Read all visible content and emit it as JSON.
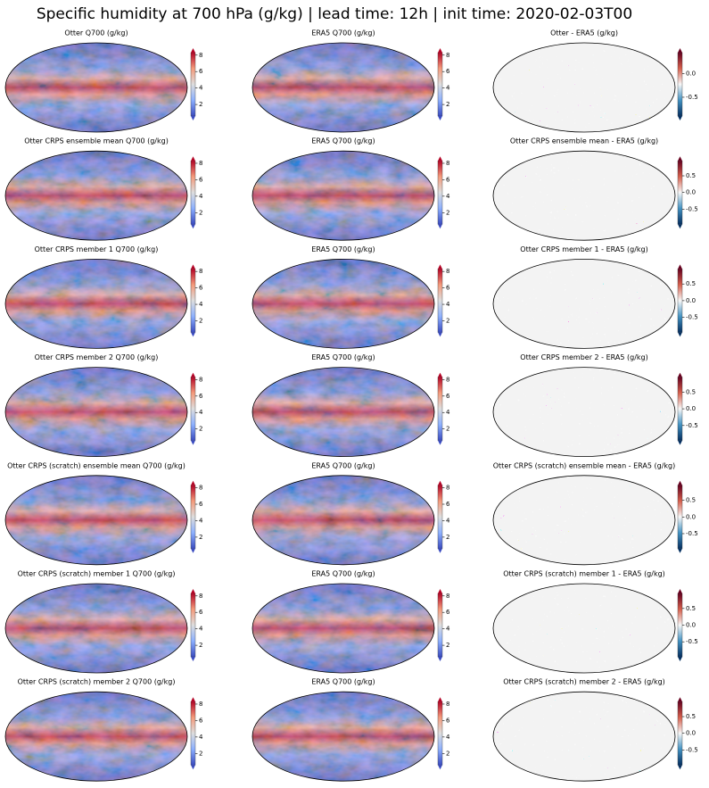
{
  "title": "Specific humidity at 700 hPa (g/kg) | lead time: 12h | init time: 2020-02-03T00",
  "colormaps": {
    "coolwarm": [
      "#3b4cc0",
      "#8db0fe",
      "#dddddd",
      "#f49a7b",
      "#b40426"
    ],
    "RdBu_r": [
      "#053061",
      "#4393c3",
      "#f7f7f7",
      "#d6604d",
      "#67001f"
    ]
  },
  "panels": [
    [
      {
        "title": "Otter Q700 (g/kg)",
        "cmap": "coolwarm",
        "clim": [
          0.6,
          8.3
        ],
        "cticks": [
          2,
          4,
          6,
          8
        ]
      },
      {
        "title": "ERA5 Q700 (g/kg)",
        "cmap": "coolwarm",
        "clim": [
          0.6,
          8.3
        ],
        "cticks": [
          2,
          4,
          6,
          8
        ]
      },
      {
        "title": "Otter - ERA5 (g/kg)",
        "cmap": "RdBu_r",
        "clim": [
          -0.9,
          0.45
        ],
        "cticks": [
          -0.5,
          {
            "value": 0,
            "label": "0.0"
          }
        ]
      }
    ],
    [
      {
        "title": "Otter CRPS ensemble mean Q700 (g/kg)",
        "cmap": "coolwarm",
        "clim": [
          0.6,
          8.3
        ],
        "cticks": [
          2,
          4,
          6,
          8
        ]
      },
      {
        "title": "ERA5 Q700 (g/kg)",
        "cmap": "coolwarm",
        "clim": [
          0.6,
          8.3
        ],
        "cticks": [
          2,
          4,
          6,
          8
        ]
      },
      {
        "title": "Otter CRPS ensemble mean - ERA5 (g/kg)",
        "cmap": "RdBu_r",
        "clim": [
          -0.95,
          0.95
        ],
        "cticks": [
          -0.5,
          {
            "value": 0,
            "label": "0.0"
          },
          0.5
        ]
      }
    ],
    [
      {
        "title": "Otter CRPS member 1 Q700 (g/kg)",
        "cmap": "coolwarm",
        "clim": [
          0.6,
          8.3
        ],
        "cticks": [
          2,
          4,
          6,
          8
        ]
      },
      {
        "title": "ERA5 Q700 (g/kg)",
        "cmap": "coolwarm",
        "clim": [
          0.6,
          8.3
        ],
        "cticks": [
          2,
          4,
          6,
          8
        ]
      },
      {
        "title": "Otter CRPS member 1 - ERA5 (g/kg)",
        "cmap": "RdBu_r",
        "clim": [
          -0.95,
          0.95
        ],
        "cticks": [
          -0.5,
          {
            "value": 0,
            "label": "0.0"
          },
          0.5
        ]
      }
    ],
    [
      {
        "title": "Otter CRPS member 2 Q700 (g/kg)",
        "cmap": "coolwarm",
        "clim": [
          0.6,
          8.3
        ],
        "cticks": [
          2,
          4,
          6,
          8
        ]
      },
      {
        "title": "ERA5 Q700 (g/kg)",
        "cmap": "coolwarm",
        "clim": [
          0.6,
          8.3
        ],
        "cticks": [
          2,
          4,
          6,
          8
        ]
      },
      {
        "title": "Otter CRPS member 2 - ERA5 (g/kg)",
        "cmap": "RdBu_r",
        "clim": [
          -0.95,
          0.95
        ],
        "cticks": [
          -0.5,
          {
            "value": 0,
            "label": "0.0"
          },
          0.5
        ]
      }
    ],
    [
      {
        "title": "Otter CRPS (scratch) ensemble mean Q700 (g/kg)",
        "cmap": "coolwarm",
        "clim": [
          0.6,
          8.3
        ],
        "cticks": [
          2,
          4,
          6,
          8
        ]
      },
      {
        "title": "ERA5 Q700 (g/kg)",
        "cmap": "coolwarm",
        "clim": [
          0.6,
          8.3
        ],
        "cticks": [
          2,
          4,
          6,
          8
        ]
      },
      {
        "title": "Otter CRPS (scratch) ensemble mean - ERA5 (g/kg)",
        "cmap": "RdBu_r",
        "clim": [
          -0.95,
          0.95
        ],
        "cticks": [
          -0.5,
          {
            "value": 0,
            "label": "0.0"
          },
          0.5
        ]
      }
    ],
    [
      {
        "title": "Otter CRPS (scratch) member 1 Q700 (g/kg)",
        "cmap": "coolwarm",
        "clim": [
          0.6,
          8.3
        ],
        "cticks": [
          2,
          4,
          6,
          8
        ]
      },
      {
        "title": "ERA5 Q700 (g/kg)",
        "cmap": "coolwarm",
        "clim": [
          0.6,
          8.3
        ],
        "cticks": [
          2,
          4,
          6,
          8
        ]
      },
      {
        "title": "Otter CRPS (scratch) member 1 - ERA5 (g/kg)",
        "cmap": "RdBu_r",
        "clim": [
          -0.95,
          0.95
        ],
        "cticks": [
          -0.5,
          {
            "value": 0,
            "label": "0.0"
          },
          0.5
        ]
      }
    ],
    [
      {
        "title": "Otter CRPS (scratch) member 2 Q700 (g/kg)",
        "cmap": "coolwarm",
        "clim": [
          0.6,
          8.3
        ],
        "cticks": [
          2,
          4,
          6,
          8
        ]
      },
      {
        "title": "ERA5 Q700 (g/kg)",
        "cmap": "coolwarm",
        "clim": [
          0.6,
          8.3
        ],
        "cticks": [
          2,
          4,
          6,
          8
        ]
      },
      {
        "title": "Otter CRPS (scratch) member 2 - ERA5 (g/kg)",
        "cmap": "RdBu_r",
        "clim": [
          -0.95,
          0.95
        ],
        "cticks": [
          -0.5,
          {
            "value": 0,
            "label": "0.0"
          },
          0.5
        ]
      }
    ]
  ]
}
